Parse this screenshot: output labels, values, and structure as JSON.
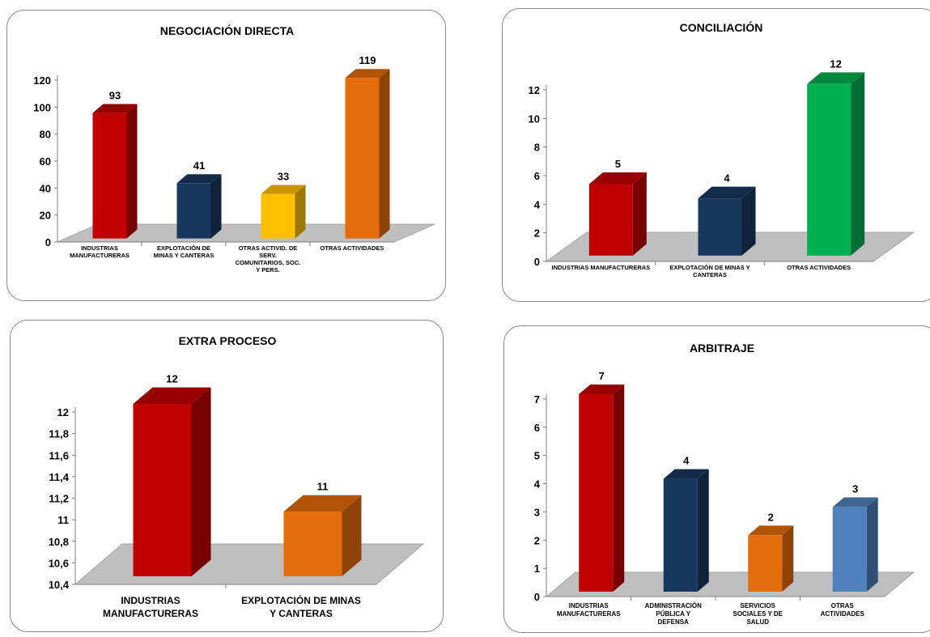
{
  "chart_data": [
    {
      "type": "bar",
      "title": "NEGOCIACIÓN DIRECTA",
      "categories": [
        "INDUSTRIAS MANUFACTURERAS",
        "EXPLOTACIÓN DE MINAS Y CANTERAS",
        "OTRAS ACTIVID. DE SERV. COMUNITARIOS, SOC. Y PERS.",
        "OTRAS ACTIVIDADES"
      ],
      "values": [
        93,
        41,
        33,
        119
      ],
      "value_labels": [
        "93",
        "41",
        "33",
        "119"
      ],
      "colors": [
        "#c00000",
        "#17375e",
        "#ffc000",
        "#e46c0a"
      ],
      "yticks": [
        "0",
        "20",
        "40",
        "60",
        "80",
        "100",
        "120"
      ],
      "ylim": [
        0,
        120
      ],
      "xlabel": "",
      "ylabel": ""
    },
    {
      "type": "bar",
      "title": "CONCILIACIÓN",
      "categories": [
        "INDUSTRIAS MANUFACTURERAS",
        "EXPLOTACIÓN DE MINAS Y CANTERAS",
        "OTRAS ACTIVIDADES"
      ],
      "values": [
        5,
        4,
        12
      ],
      "value_labels": [
        "5",
        "4",
        "12"
      ],
      "colors": [
        "#c00000",
        "#17375e",
        "#00b050"
      ],
      "yticks": [
        "0",
        "2",
        "4",
        "6",
        "8",
        "10",
        "12"
      ],
      "ylim": [
        0,
        12
      ],
      "xlabel": "",
      "ylabel": ""
    },
    {
      "type": "bar",
      "title": "EXTRA PROCESO",
      "categories": [
        "INDUSTRIAS MANUFACTURERAS",
        "EXPLOTACIÓN DE MINAS Y CANTERAS"
      ],
      "values": [
        12,
        11
      ],
      "value_labels": [
        "12",
        "11"
      ],
      "colors": [
        "#c00000",
        "#e46c0a"
      ],
      "yticks": [
        "10,4",
        "10,6",
        "10,8",
        "11",
        "11,2",
        "11,4",
        "11,6",
        "11,8",
        "12"
      ],
      "ylim": [
        10.4,
        12
      ],
      "xlabel": "",
      "ylabel": ""
    },
    {
      "type": "bar",
      "title": "ARBITRAJE",
      "categories": [
        "INDUSTRIAS MANUFACTURERAS",
        "ADMINISTRACIÓN PÚBLICA Y DEFENSA",
        "SERVICIOS SOCIALES Y DE SALUD",
        "OTRAS ACTIVIDADES"
      ],
      "values": [
        7,
        4,
        2,
        3
      ],
      "value_labels": [
        "7",
        "4",
        "2",
        "3"
      ],
      "colors": [
        "#c00000",
        "#17375e",
        "#e46c0a",
        "#4f81bd"
      ],
      "yticks": [
        "0",
        "1",
        "2",
        "3",
        "4",
        "5",
        "6",
        "7"
      ],
      "ylim": [
        0,
        7
      ],
      "xlabel": "",
      "ylabel": ""
    }
  ]
}
